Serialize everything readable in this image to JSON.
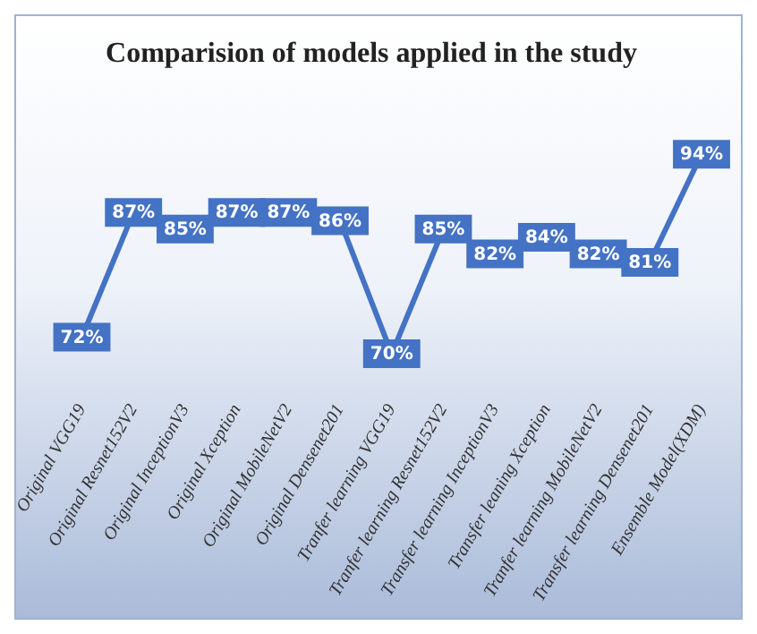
{
  "chart_data": {
    "type": "line",
    "title": "Comparision of models applied in the study",
    "categories": [
      "Original VGG19",
      "Original Resnet152V2",
      "Original InceptionV3",
      "Original Xception",
      "Original MobileNetV2",
      "Original Densenet201",
      "Tranfer learning VGG19",
      "Tranfer learning Resnet152V2",
      "Transfer learning InceptionV3",
      "Transfer leaning Xception",
      "Tranfer learning MobileNetV2",
      "Transfer learning Densenet201",
      "Ensemble Model(XDM)"
    ],
    "series": [
      {
        "color": "#4472c4",
        "marker": "square",
        "values": [
          72,
          87,
          85,
          87,
          87,
          86,
          70,
          85,
          82,
          84,
          82,
          81,
          94
        ],
        "value_labels": [
          "72%",
          "87%",
          "85%",
          "87%",
          "87%",
          "86%",
          "70%",
          "85%",
          "82%",
          "84%",
          "82%",
          "81%",
          "94%"
        ]
      }
    ],
    "grid": false,
    "legend": false
  }
}
